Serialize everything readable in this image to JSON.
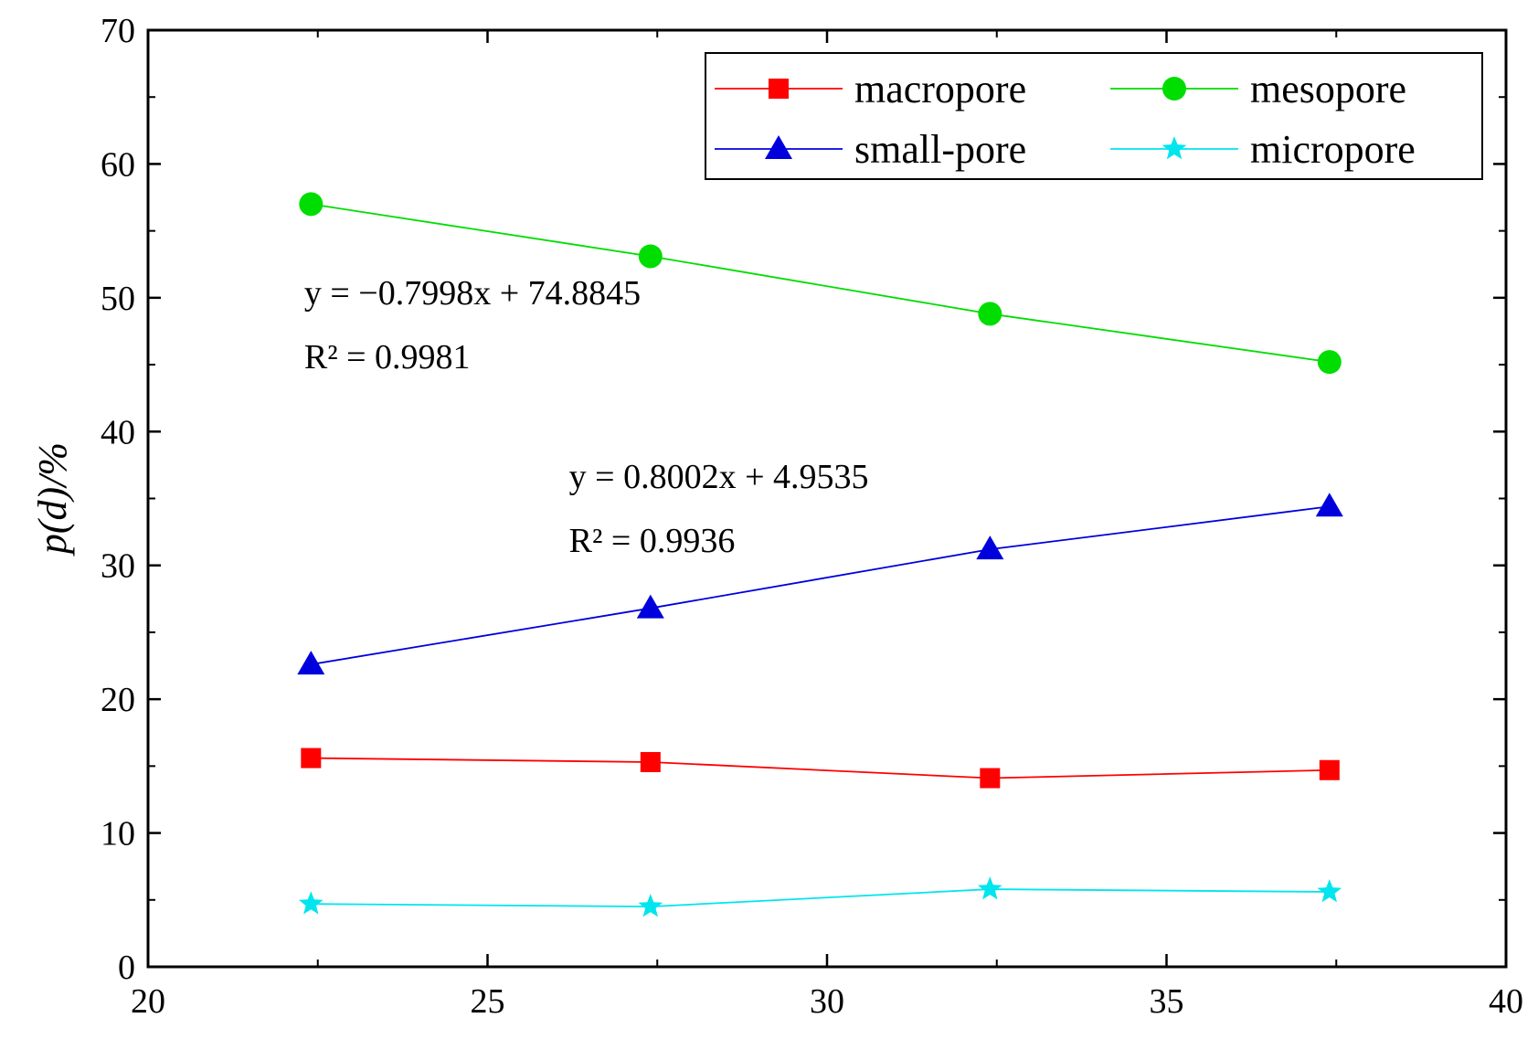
{
  "chart_data": {
    "type": "line",
    "x": [
      22.4,
      27.4,
      32.4,
      37.4
    ],
    "xlim": [
      20,
      40
    ],
    "ylim": [
      0,
      70
    ],
    "xticks": [
      20,
      25,
      30,
      35,
      40
    ],
    "yticks": [
      0,
      10,
      20,
      30,
      40,
      50,
      60,
      70
    ],
    "xlabel": "",
    "ylabel": "p(d)/%",
    "legend_position": "top-right",
    "series": [
      {
        "name": "macropore",
        "values": [
          15.6,
          15.3,
          14.1,
          14.7
        ],
        "color": "#ff0000",
        "marker": "square"
      },
      {
        "name": "mesopore",
        "values": [
          57.0,
          53.1,
          48.8,
          45.2
        ],
        "color": "#00dd00",
        "marker": "circle"
      },
      {
        "name": "small-pore",
        "values": [
          22.6,
          26.8,
          31.2,
          34.4
        ],
        "color": "#0000dd",
        "marker": "triangle"
      },
      {
        "name": "micropore",
        "values": [
          4.7,
          4.5,
          5.8,
          5.6
        ],
        "color": "#00e5ee",
        "marker": "star"
      }
    ],
    "annotations": [
      {
        "line1": "y = −0.7998x + 74.8845",
        "line2": "R² = 0.9981",
        "anchor_x": 22.3,
        "anchor_y": 49.5
      },
      {
        "line1": "y = 0.8002x + 4.9535",
        "line2": "R² = 0.9936",
        "anchor_x": 26.2,
        "anchor_y": 35.8
      }
    ]
  }
}
